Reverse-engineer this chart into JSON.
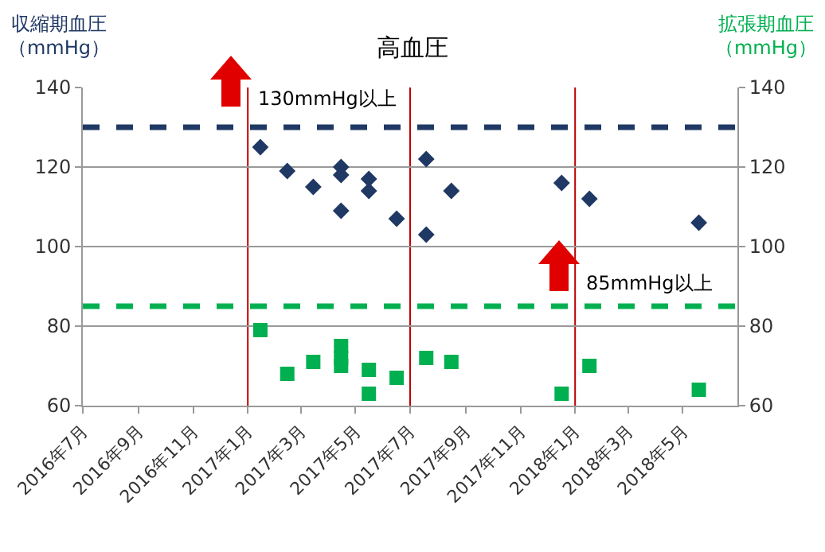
{
  "chart_data": {
    "type": "scatter",
    "title": "高血圧",
    "ylabel": "収縮期血圧（mmHg）",
    "y2label": "拡張期血圧（mmHg）",
    "series": [
      {
        "color": "#1f3864",
        "marker": "diamond",
        "x": [
          "2017-01-15",
          "2017-02-14",
          "2017-03-15",
          "2017-04-15",
          "2017-04-15",
          "2017-04-15",
          "2017-05-16",
          "2017-05-16",
          "2017-06-16",
          "2017-07-19",
          "2017-07-19",
          "2017-08-16",
          "2017-12-17",
          "2018-01-17",
          "2018-05-19"
        ],
        "values": [
          125,
          119,
          115,
          120,
          118,
          109,
          117,
          114,
          107,
          122,
          103,
          114,
          116,
          112,
          106
        ]
      },
      {
        "color": "#00b050",
        "marker": "square",
        "axis": "y2",
        "x": [
          "2017-01-15",
          "2017-02-14",
          "2017-03-15",
          "2017-04-15",
          "2017-04-15",
          "2017-04-15",
          "2017-05-16",
          "2017-05-16",
          "2017-06-16",
          "2017-07-19",
          "2017-08-16",
          "2017-12-17",
          "2018-01-17",
          "2018-05-19"
        ],
        "values": [
          79,
          68,
          71,
          75,
          72,
          70,
          69,
          63,
          67,
          72,
          71,
          63,
          70,
          64
        ]
      }
    ],
    "xlim": [
      "2016-07-01",
      "2018-07-01"
    ],
    "xticks": [
      {
        "value": "2016-07-01",
        "label": "2016年7月"
      },
      {
        "value": "2016-09-01",
        "label": "2016年9月"
      },
      {
        "value": "2016-11-01",
        "label": "2016年11月"
      },
      {
        "value": "2017-01-01",
        "label": "2017年1月"
      },
      {
        "value": "2017-03-01",
        "label": "2017年3月"
      },
      {
        "value": "2017-05-01",
        "label": "2017年5月"
      },
      {
        "value": "2017-07-01",
        "label": "2017年7月"
      },
      {
        "value": "2017-09-01",
        "label": "2017年9月"
      },
      {
        "value": "2017-11-01",
        "label": "2017年11月"
      },
      {
        "value": "2018-01-01",
        "label": "2018年1月"
      },
      {
        "value": "2018-03-01",
        "label": "2018年3月"
      },
      {
        "value": "2018-05-01",
        "label": "2018年5月"
      }
    ],
    "ylim": [
      60,
      140
    ],
    "yticks": [
      60,
      80,
      100,
      120,
      140
    ],
    "y2lim": [
      60,
      140
    ],
    "y2ticks": [
      60,
      80,
      100,
      120,
      140
    ],
    "grid": "y",
    "ref_lines": [
      {
        "axis": "y",
        "value": 130,
        "color": "#1f3864",
        "line_style": "dashed"
      },
      {
        "axis": "y2",
        "value": 85,
        "color": "#00b050",
        "line_style": "dashed"
      },
      {
        "axis": "x",
        "value": "2017-01-01",
        "color": "#c00000"
      },
      {
        "axis": "x",
        "value": "2017-07-01",
        "color": "#c00000"
      },
      {
        "axis": "x",
        "value": "2018-01-01",
        "color": "#c00000"
      }
    ],
    "annotations": [
      "130mmHg以上",
      "85mmHg以上"
    ]
  }
}
